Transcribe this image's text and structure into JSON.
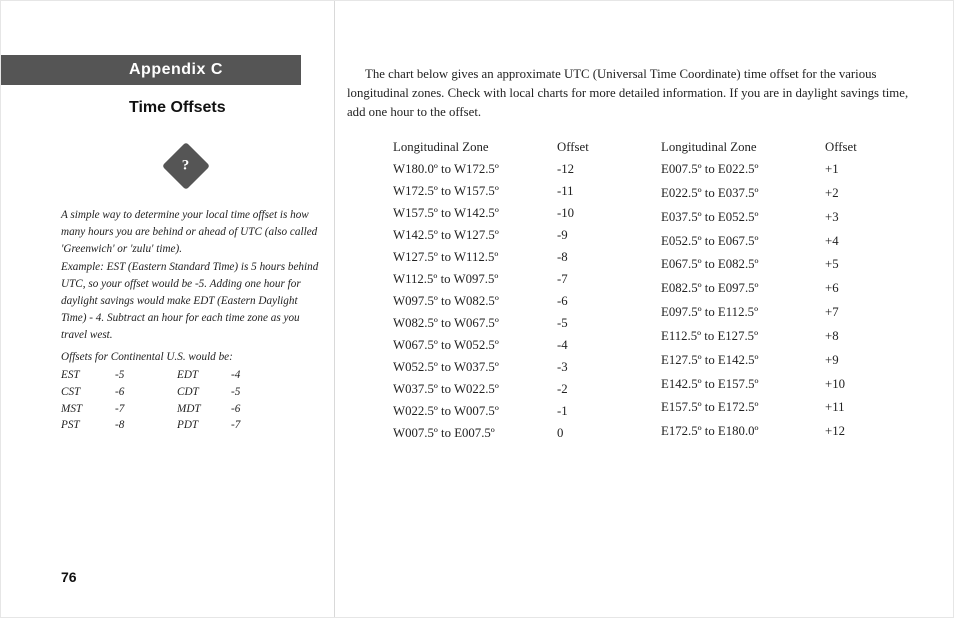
{
  "appendix_label": "Appendix C",
  "section_title": "Time Offsets",
  "diamond_glyph": "?",
  "sidebar": {
    "p1": "A simple way to determine your local time offset is how many hours you are behind or ahead of UTC (also called 'Greenwich' or 'zulu' time).",
    "p2": "Example: EST (Eastern Standard Time) is 5 hours behind UTC, so your offset would be -5. Adding one hour for daylight savings would make EDT (Eastern Daylight Time) - 4. Subtract an hour for each time zone as you travel west."
  },
  "us_title": "Offsets for Continental U.S. would be:",
  "us_rows": [
    {
      "std": "EST",
      "so": "-5",
      "dst": "EDT",
      "do": "-4"
    },
    {
      "std": "CST",
      "so": "-6",
      "dst": "CDT",
      "do": "-5"
    },
    {
      "std": "MST",
      "so": "-7",
      "dst": "MDT",
      "do": "-6"
    },
    {
      "std": "PST",
      "so": "-8",
      "dst": "PDT",
      "do": "-7"
    }
  ],
  "page_number": "76",
  "intro": "The chart below gives an approximate UTC (Universal Time Coordinate) time offset for the various longitudinal zones. Check with local charts for more detailed information. If you are in daylight savings time, add one hour to the offset.",
  "zone_header": "Longitudinal Zone",
  "offset_header": "Offset",
  "left_rows": [
    {
      "z": "W180.0º to W172.5º",
      "o": "-12"
    },
    {
      "z": "W172.5º to W157.5º",
      "o": "-11"
    },
    {
      "z": "W157.5º to W142.5º",
      "o": "-10"
    },
    {
      "z": "W142.5º to W127.5º",
      "o": "-9"
    },
    {
      "z": "W127.5º to W112.5º",
      "o": "-8"
    },
    {
      "z": "W112.5º to W097.5º",
      "o": "-7"
    },
    {
      "z": "W097.5º to W082.5º",
      "o": "-6"
    },
    {
      "z": "W082.5º to W067.5º",
      "o": "-5"
    },
    {
      "z": "W067.5º to W052.5º",
      "o": "-4"
    },
    {
      "z": "W052.5º to W037.5º",
      "o": "-3"
    },
    {
      "z": "W037.5º to W022.5º",
      "o": "-2"
    },
    {
      "z": "W022.5º to W007.5º",
      "o": "-1"
    },
    {
      "z": "W007.5º to E007.5º",
      "o": "0"
    }
  ],
  "right_rows": [
    {
      "z": "E007.5º to E022.5º",
      "o": "+1"
    },
    {
      "z": "E022.5º to E037.5º",
      "o": "+2"
    },
    {
      "z": "E037.5º to E052.5º",
      "o": "+3"
    },
    {
      "z": "E052.5º to E067.5º",
      "o": "+4"
    },
    {
      "z": "E067.5º to E082.5º",
      "o": "+5"
    },
    {
      "z": "E082.5º to E097.5º",
      "o": "+6"
    },
    {
      "z": "E097.5º to E112.5º",
      "o": "+7"
    },
    {
      "z": "E112.5º to E127.5º",
      "o": "+8"
    },
    {
      "z": "E127.5º to E142.5º",
      "o": "+9"
    },
    {
      "z": "E142.5º to E157.5º",
      "o": "+10"
    },
    {
      "z": "E157.5º to E172.5º",
      "o": "+11"
    },
    {
      "z": "E172.5º to E180.0º",
      "o": "+12"
    }
  ]
}
